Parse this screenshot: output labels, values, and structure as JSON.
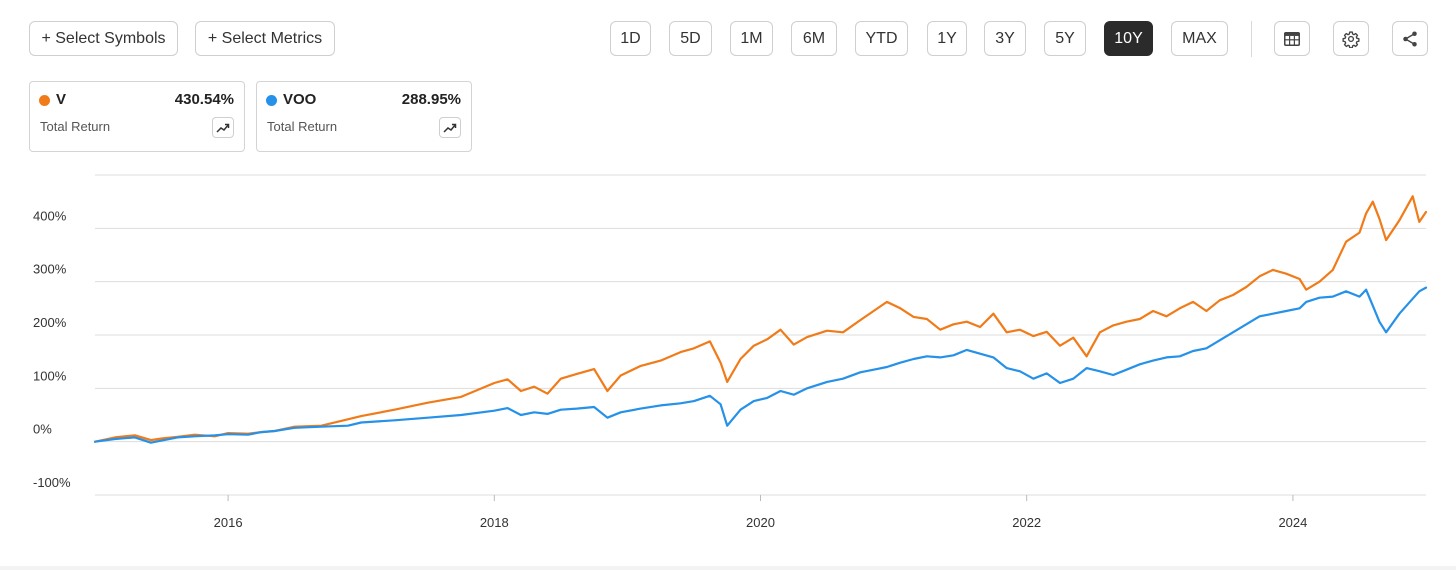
{
  "toolbar": {
    "select_symbols": "+ Select Symbols",
    "select_metrics": "+ Select Metrics",
    "ranges": [
      "1D",
      "5D",
      "1M",
      "6M",
      "YTD",
      "1Y",
      "3Y",
      "5Y",
      "10Y",
      "MAX"
    ],
    "selected_range": "10Y",
    "icons": [
      "table-icon",
      "gear-icon",
      "share-icon"
    ]
  },
  "cards": [
    {
      "symbol": "V",
      "metric": "Total Return",
      "value": "430.54%",
      "color": "#f07b18"
    },
    {
      "symbol": "VOO",
      "metric": "Total Return",
      "value": "288.95%",
      "color": "#2591e8"
    }
  ],
  "chart_data": {
    "type": "line",
    "xlim": [
      2015.0,
      2025.0
    ],
    "ylim": [
      -100,
      500
    ],
    "y_ticks": [
      {
        "value": -100,
        "label": "-100%"
      },
      {
        "value": 0,
        "label": "0%"
      },
      {
        "value": 100,
        "label": "100%"
      },
      {
        "value": 200,
        "label": "200%"
      },
      {
        "value": 300,
        "label": "300%"
      },
      {
        "value": 400,
        "label": "400%"
      }
    ],
    "x_ticks": [
      {
        "value": 2016,
        "label": "2016"
      },
      {
        "value": 2018,
        "label": "2018"
      },
      {
        "value": 2020,
        "label": "2020"
      },
      {
        "value": 2022,
        "label": "2022"
      },
      {
        "value": 2024,
        "label": "2024"
      }
    ],
    "grid": "horizontal",
    "legend": "top-left",
    "series": [
      {
        "name": "V",
        "color": "#f07b18",
        "points": [
          [
            2015.0,
            0
          ],
          [
            2015.15,
            8
          ],
          [
            2015.3,
            12
          ],
          [
            2015.42,
            3
          ],
          [
            2015.5,
            6
          ],
          [
            2015.62,
            9
          ],
          [
            2015.75,
            13
          ],
          [
            2015.9,
            10
          ],
          [
            2016.0,
            16
          ],
          [
            2016.15,
            15
          ],
          [
            2016.25,
            18
          ],
          [
            2016.35,
            20
          ],
          [
            2016.5,
            28
          ],
          [
            2016.7,
            30
          ],
          [
            2016.9,
            42
          ],
          [
            2017.0,
            48
          ],
          [
            2017.25,
            60
          ],
          [
            2017.5,
            73
          ],
          [
            2017.75,
            84
          ],
          [
            2018.0,
            110
          ],
          [
            2018.1,
            117
          ],
          [
            2018.2,
            95
          ],
          [
            2018.3,
            103
          ],
          [
            2018.4,
            90
          ],
          [
            2018.5,
            118
          ],
          [
            2018.62,
            127
          ],
          [
            2018.75,
            136
          ],
          [
            2018.85,
            95
          ],
          [
            2018.95,
            124
          ],
          [
            2019.1,
            142
          ],
          [
            2019.25,
            152
          ],
          [
            2019.4,
            168
          ],
          [
            2019.5,
            175
          ],
          [
            2019.62,
            188
          ],
          [
            2019.7,
            148
          ],
          [
            2019.75,
            112
          ],
          [
            2019.85,
            155
          ],
          [
            2019.95,
            180
          ],
          [
            2020.05,
            192
          ],
          [
            2020.15,
            210
          ],
          [
            2020.25,
            182
          ],
          [
            2020.35,
            196
          ],
          [
            2020.5,
            208
          ],
          [
            2020.62,
            205
          ],
          [
            2020.75,
            228
          ],
          [
            2020.85,
            245
          ],
          [
            2020.95,
            262
          ],
          [
            2021.05,
            250
          ],
          [
            2021.15,
            234
          ],
          [
            2021.25,
            230
          ],
          [
            2021.35,
            210
          ],
          [
            2021.45,
            220
          ],
          [
            2021.55,
            225
          ],
          [
            2021.65,
            215
          ],
          [
            2021.75,
            240
          ],
          [
            2021.85,
            205
          ],
          [
            2021.95,
            210
          ],
          [
            2022.05,
            198
          ],
          [
            2022.15,
            206
          ],
          [
            2022.25,
            180
          ],
          [
            2022.35,
            195
          ],
          [
            2022.45,
            160
          ],
          [
            2022.55,
            205
          ],
          [
            2022.65,
            218
          ],
          [
            2022.75,
            225
          ],
          [
            2022.85,
            230
          ],
          [
            2022.95,
            245
          ],
          [
            2023.05,
            235
          ],
          [
            2023.15,
            250
          ],
          [
            2023.25,
            262
          ],
          [
            2023.35,
            245
          ],
          [
            2023.45,
            265
          ],
          [
            2023.55,
            275
          ],
          [
            2023.65,
            290
          ],
          [
            2023.75,
            310
          ],
          [
            2023.85,
            322
          ],
          [
            2023.95,
            315
          ],
          [
            2024.05,
            305
          ],
          [
            2024.1,
            285
          ],
          [
            2024.2,
            300
          ],
          [
            2024.3,
            322
          ],
          [
            2024.4,
            375
          ],
          [
            2024.5,
            392
          ],
          [
            2024.55,
            428
          ],
          [
            2024.6,
            450
          ],
          [
            2024.65,
            418
          ],
          [
            2024.7,
            378
          ],
          [
            2024.8,
            415
          ],
          [
            2024.9,
            460
          ],
          [
            2024.95,
            412
          ],
          [
            2025.0,
            430.54
          ]
        ]
      },
      {
        "name": "VOO",
        "color": "#2591e8",
        "points": [
          [
            2015.0,
            0
          ],
          [
            2015.15,
            5
          ],
          [
            2015.3,
            8
          ],
          [
            2015.42,
            -2
          ],
          [
            2015.5,
            2
          ],
          [
            2015.62,
            8
          ],
          [
            2015.75,
            10
          ],
          [
            2015.9,
            12
          ],
          [
            2016.0,
            14
          ],
          [
            2016.15,
            13
          ],
          [
            2016.25,
            18
          ],
          [
            2016.35,
            20
          ],
          [
            2016.5,
            26
          ],
          [
            2016.7,
            28
          ],
          [
            2016.9,
            30
          ],
          [
            2017.0,
            36
          ],
          [
            2017.25,
            40
          ],
          [
            2017.5,
            45
          ],
          [
            2017.75,
            50
          ],
          [
            2018.0,
            58
          ],
          [
            2018.1,
            63
          ],
          [
            2018.2,
            50
          ],
          [
            2018.3,
            55
          ],
          [
            2018.4,
            52
          ],
          [
            2018.5,
            60
          ],
          [
            2018.62,
            62
          ],
          [
            2018.75,
            65
          ],
          [
            2018.85,
            45
          ],
          [
            2018.95,
            55
          ],
          [
            2019.1,
            62
          ],
          [
            2019.25,
            68
          ],
          [
            2019.4,
            72
          ],
          [
            2019.5,
            76
          ],
          [
            2019.62,
            86
          ],
          [
            2019.7,
            70
          ],
          [
            2019.75,
            30
          ],
          [
            2019.85,
            60
          ],
          [
            2019.95,
            76
          ],
          [
            2020.05,
            82
          ],
          [
            2020.15,
            95
          ],
          [
            2020.25,
            88
          ],
          [
            2020.35,
            100
          ],
          [
            2020.5,
            112
          ],
          [
            2020.62,
            118
          ],
          [
            2020.75,
            130
          ],
          [
            2020.85,
            135
          ],
          [
            2020.95,
            140
          ],
          [
            2021.05,
            148
          ],
          [
            2021.15,
            155
          ],
          [
            2021.25,
            160
          ],
          [
            2021.35,
            158
          ],
          [
            2021.45,
            162
          ],
          [
            2021.55,
            172
          ],
          [
            2021.65,
            165
          ],
          [
            2021.75,
            158
          ],
          [
            2021.85,
            138
          ],
          [
            2021.95,
            132
          ],
          [
            2022.05,
            118
          ],
          [
            2022.15,
            128
          ],
          [
            2022.25,
            110
          ],
          [
            2022.35,
            118
          ],
          [
            2022.45,
            138
          ],
          [
            2022.55,
            132
          ],
          [
            2022.65,
            125
          ],
          [
            2022.75,
            135
          ],
          [
            2022.85,
            145
          ],
          [
            2022.95,
            152
          ],
          [
            2023.05,
            158
          ],
          [
            2023.15,
            160
          ],
          [
            2023.25,
            170
          ],
          [
            2023.35,
            175
          ],
          [
            2023.45,
            190
          ],
          [
            2023.55,
            205
          ],
          [
            2023.65,
            220
          ],
          [
            2023.75,
            235
          ],
          [
            2023.85,
            240
          ],
          [
            2023.95,
            245
          ],
          [
            2024.05,
            250
          ],
          [
            2024.1,
            262
          ],
          [
            2024.2,
            270
          ],
          [
            2024.3,
            272
          ],
          [
            2024.4,
            282
          ],
          [
            2024.5,
            272
          ],
          [
            2024.55,
            285
          ],
          [
            2024.6,
            255
          ],
          [
            2024.65,
            225
          ],
          [
            2024.7,
            205
          ],
          [
            2024.8,
            240
          ],
          [
            2024.9,
            268
          ],
          [
            2024.95,
            282
          ],
          [
            2025.0,
            288.95
          ]
        ]
      }
    ]
  }
}
